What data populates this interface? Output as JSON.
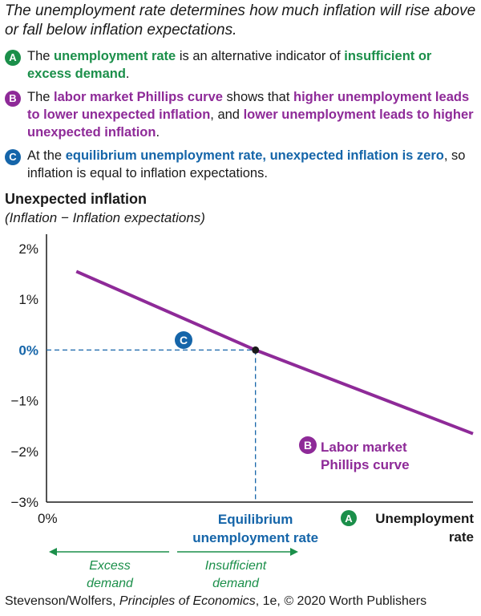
{
  "headline": "The unemployment rate determines how much inflation will rise above or fall below inflation expectations.",
  "notes": [
    {
      "badge": "A",
      "parts": [
        {
          "t": "The ",
          "s": ""
        },
        {
          "t": "unemployment rate",
          "s": "g"
        },
        {
          "t": " is an alternative indicator of ",
          "s": ""
        },
        {
          "t": "insufficient or excess demand",
          "s": "g"
        },
        {
          "t": ".",
          "s": ""
        }
      ]
    },
    {
      "badge": "B",
      "parts": [
        {
          "t": "The ",
          "s": ""
        },
        {
          "t": "labor market Phillips curve",
          "s": "p"
        },
        {
          "t": " shows that ",
          "s": ""
        },
        {
          "t": "higher unemployment leads to lower unexpected inflation",
          "s": "p"
        },
        {
          "t": ", and ",
          "s": ""
        },
        {
          "t": "lower unemployment leads to higher unexpected inflation",
          "s": "p"
        },
        {
          "t": ".",
          "s": ""
        }
      ]
    },
    {
      "badge": "C",
      "parts": [
        {
          "t": "At the ",
          "s": ""
        },
        {
          "t": "equilibrium unemployment rate, unexpected inflation is zero",
          "s": "bl"
        },
        {
          "t": ", so inflation is equal to inflation expectations.",
          "s": ""
        }
      ]
    }
  ],
  "chart_data": {
    "type": "line",
    "ylabel": "Unexpected inflation",
    "ylabel_sub": "(Inflation − Inflation expectations)",
    "yticks": [
      "2%",
      "1%",
      "0%",
      "−1%",
      "−2%",
      "−3%"
    ],
    "ylim": [
      -3,
      2
    ],
    "xtick_origin": "0%",
    "xlabel_badge": "A",
    "xlabel_line1": "Unemployment",
    "xlabel_line2": "rate",
    "series": [
      {
        "name": "Labor market Phillips curve",
        "name_line1": "Labor market",
        "name_line2": "Phillips curve",
        "badge": "B",
        "color": "#8e2a98",
        "points": [
          [
            0.07,
            1.55
          ],
          [
            0.49,
            0.0
          ],
          [
            1.0,
            -1.65
          ]
        ]
      }
    ],
    "equilibrium": {
      "x": 0.49,
      "y": 0,
      "badge": "C",
      "label_line1": "Equilibrium",
      "label_line2": "unemployment rate"
    },
    "arrows": [
      {
        "direction": "left",
        "line1": "Excess",
        "line2": "demand"
      },
      {
        "direction": "right",
        "line1": "Insufficient",
        "line2": "demand"
      }
    ],
    "colors": {
      "green": "#1b8f4a",
      "purple": "#8e2a98",
      "blue": "#1565a9"
    }
  },
  "footer": {
    "pre": "Stevenson/Wolfers, ",
    "title": "Principles of Economics",
    "post": ", 1e, © 2020 Worth Publishers"
  }
}
